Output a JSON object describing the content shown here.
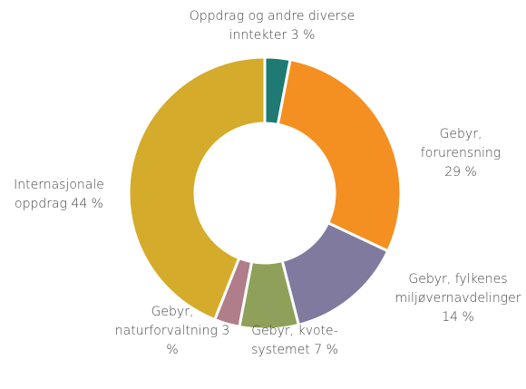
{
  "chart_data": {
    "type": "donut",
    "categories": [
      "Oppdrag og andre diverse inntekter",
      "Gebyr, forurensning",
      "Gebyr, fylkenes miljøvernavdelinger",
      "Gebyr, kvote-systemet",
      "Gebyr, naturforvaltning",
      "Internasjonale oppdrag"
    ],
    "values": [
      3,
      29,
      14,
      7,
      3,
      44
    ],
    "value_labels": [
      "3 %",
      "29 %",
      "14 %",
      "7 %",
      "3 %",
      "44 %"
    ],
    "colors": [
      "#1e7a72",
      "#f39021",
      "#7f7a9e",
      "#8fa05a",
      "#b07d8a",
      "#d4ab2a"
    ]
  }
}
